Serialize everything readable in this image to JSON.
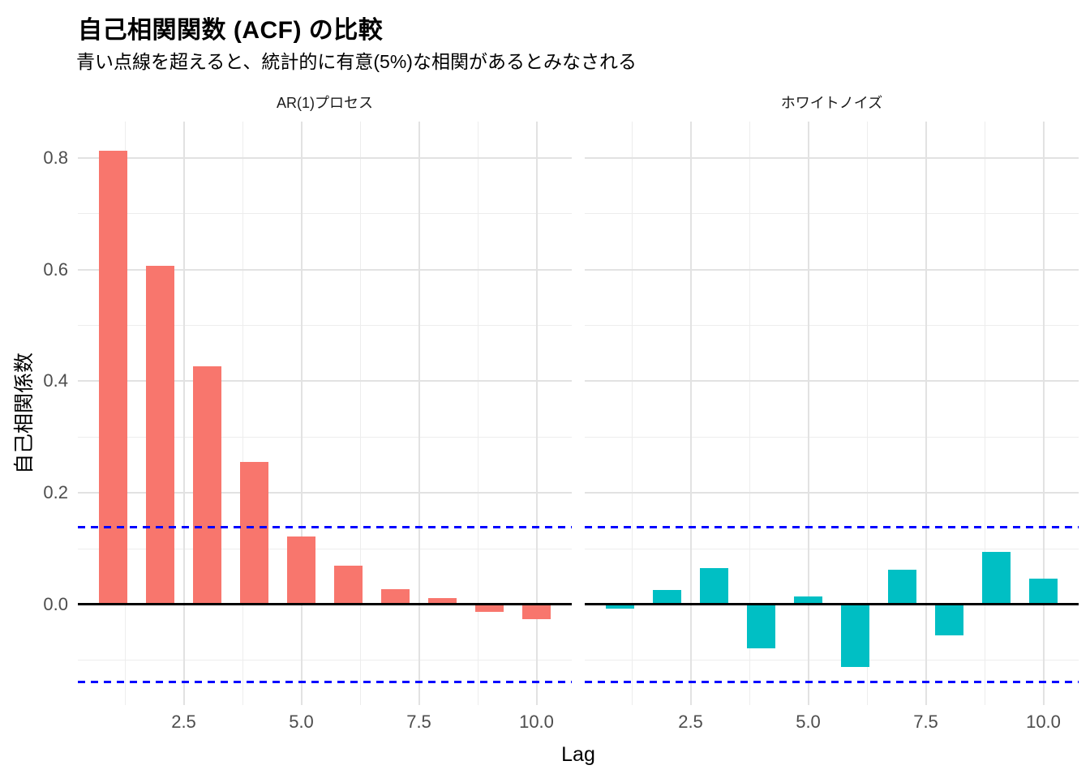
{
  "header": {
    "title": "自己相関関数 (ACF) の比較",
    "subtitle": "青い点線を超えると、統計的に有意(5%)な相関があるとみなされる"
  },
  "axes": {
    "x_label": "Lag",
    "y_label": "自己相関係数"
  },
  "chart_data": {
    "type": "bar",
    "title": "自己相関関数 (ACF) の比較",
    "subtitle": "青い点線を超えると、統計的に有意(5%)な相関があるとみなされる",
    "xlabel": "Lag",
    "ylabel": "自己相関係数",
    "x": [
      1,
      2,
      3,
      4,
      5,
      6,
      7,
      8,
      9,
      10
    ],
    "facets": [
      {
        "label": "AR(1)プロセス",
        "bar_color": "#F8766D",
        "values": [
          0.813,
          0.606,
          0.427,
          0.256,
          0.122,
          0.069,
          0.027,
          0.011,
          -0.013,
          -0.026
        ]
      },
      {
        "label": "ホワイトノイズ",
        "bar_color": "#00BFC4",
        "values": [
          -0.007,
          0.026,
          0.066,
          -0.078,
          0.015,
          -0.112,
          0.063,
          -0.055,
          0.094,
          0.047
        ]
      }
    ],
    "sig_threshold": 0.139,
    "sig_line_color": "#0000FF",
    "zero_line_color": "#000000",
    "x_ticks": [
      2.5,
      5.0,
      7.5,
      10.0
    ],
    "x_minor_ticks": [
      1.25,
      3.75,
      6.25,
      8.75
    ],
    "y_ticks": [
      0.0,
      0.2,
      0.4,
      0.6,
      0.8
    ],
    "y_minor_ticks": [
      -0.1,
      0.1,
      0.3,
      0.5,
      0.7
    ],
    "xlim": [
      0.25,
      10.75
    ],
    "ylim": [
      -0.18,
      0.865
    ],
    "bar_width": 0.6,
    "grid": "on",
    "grid_major_color": "#E2E2E2",
    "grid_minor_color": "#EDEDED",
    "tick_label_color": "#4D4D4D",
    "legend_position": "none"
  }
}
